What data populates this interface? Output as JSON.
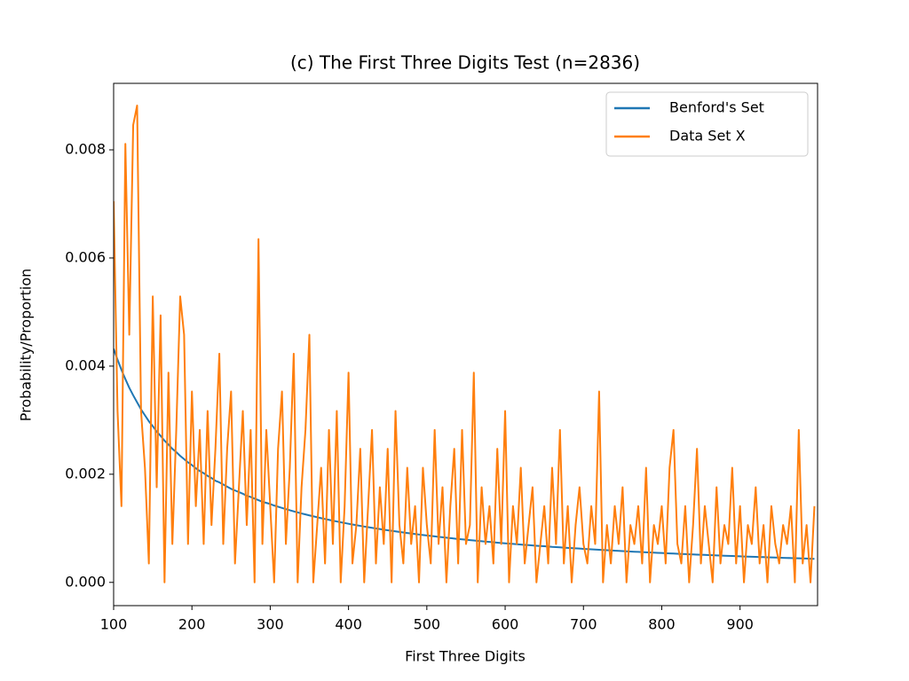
{
  "chart_data": {
    "type": "line",
    "title": "(c) The First Three Digits Test (n=2836)",
    "x_label": "First Three Digits",
    "y_label": "Probability/Proportion",
    "xlim": [
      100,
      999
    ],
    "ylim": [
      -0.00043,
      0.00923
    ],
    "xticks": [
      100,
      200,
      300,
      400,
      500,
      600,
      700,
      800,
      900
    ],
    "yticks": [
      {
        "value": 0,
        "label": "0.000"
      },
      {
        "value": 0.002,
        "label": "0.002"
      },
      {
        "value": 0.004,
        "label": "0.004"
      },
      {
        "value": 0.006,
        "label": "0.006"
      },
      {
        "value": 0.008,
        "label": "0.008"
      }
    ],
    "legend": "upper right",
    "grid": false,
    "x": [
      100,
      105,
      110,
      115,
      120,
      125,
      130,
      135,
      140,
      145,
      150,
      155,
      160,
      165,
      170,
      175,
      180,
      185,
      190,
      195,
      200,
      205,
      210,
      215,
      220,
      225,
      230,
      235,
      240,
      245,
      250,
      255,
      260,
      265,
      270,
      275,
      280,
      285,
      290,
      295,
      300,
      305,
      310,
      315,
      320,
      325,
      330,
      335,
      340,
      345,
      350,
      355,
      360,
      365,
      370,
      375,
      380,
      385,
      390,
      395,
      400,
      405,
      410,
      415,
      420,
      425,
      430,
      435,
      440,
      445,
      450,
      455,
      460,
      465,
      470,
      475,
      480,
      485,
      490,
      495,
      500,
      505,
      510,
      515,
      520,
      525,
      530,
      535,
      540,
      545,
      550,
      555,
      560,
      565,
      570,
      575,
      580,
      585,
      590,
      595,
      600,
      605,
      610,
      615,
      620,
      625,
      630,
      635,
      640,
      645,
      650,
      655,
      660,
      665,
      670,
      675,
      680,
      685,
      690,
      695,
      700,
      705,
      710,
      715,
      720,
      725,
      730,
      735,
      740,
      745,
      750,
      755,
      760,
      765,
      770,
      775,
      780,
      785,
      790,
      795,
      800,
      805,
      810,
      815,
      820,
      825,
      830,
      835,
      840,
      845,
      850,
      855,
      860,
      865,
      870,
      875,
      880,
      885,
      890,
      895,
      900,
      905,
      910,
      915,
      920,
      925,
      930,
      935,
      940,
      945,
      950,
      955,
      960,
      965,
      970,
      975,
      980,
      985,
      990,
      995
    ],
    "series": [
      {
        "name": "Benford's Set",
        "color": "#1f77b4",
        "values": [
          0.00432,
          0.00412,
          0.00393,
          0.00376,
          0.0036,
          0.00346,
          0.00333,
          0.0032,
          0.00309,
          0.00298,
          0.00289,
          0.00279,
          0.00271,
          0.00262,
          0.00255,
          0.00247,
          0.00241,
          0.00234,
          0.00228,
          0.00222,
          0.00217,
          0.00211,
          0.00206,
          0.00202,
          0.00197,
          0.00193,
          0.00188,
          0.00185,
          0.00181,
          0.00177,
          0.00173,
          0.0017,
          0.00167,
          0.00164,
          0.0016,
          0.00158,
          0.00155,
          0.00152,
          0.00149,
          0.00147,
          0.00145,
          0.001421,
          0.001399,
          0.001377,
          0.001355,
          0.001334,
          0.001314,
          0.001294,
          0.001275,
          0.001257,
          0.001239,
          0.001222,
          0.001205,
          0.001188,
          0.001172,
          0.001157,
          0.001141,
          0.001127,
          0.001112,
          0.001098,
          0.001084,
          0.001071,
          0.001058,
          0.001045,
          0.001033,
          0.001021,
          0.001009,
          0.000997,
          0.000986,
          0.000975,
          0.000964,
          0.000953,
          0.000943,
          0.000933,
          0.000923,
          0.000913,
          0.000904,
          0.000895,
          0.000885,
          0.000876,
          0.000867,
          0.000859,
          0.000851,
          0.000842,
          0.000834,
          0.000826,
          0.000819,
          0.000811,
          0.000803,
          0.000796,
          0.000789,
          0.000782,
          0.000775,
          0.000768,
          0.000761,
          0.000754,
          0.000748,
          0.000742,
          0.000735,
          0.000729,
          0.000723,
          0.000717,
          0.000711,
          0.000706,
          0.0007,
          0.000694,
          0.000689,
          0.000683,
          0.000678,
          0.000673,
          0.000668,
          0.000663,
          0.000657,
          0.000653,
          0.000648,
          0.000643,
          0.000638,
          0.000634,
          0.000629,
          0.000625,
          0.00062,
          0.000616,
          0.000611,
          0.000607,
          0.000603,
          0.000599,
          0.000595,
          0.000591,
          0.000586,
          0.000583,
          0.000579,
          0.000575,
          0.000571,
          0.000567,
          0.000564,
          0.00056,
          0.000556,
          0.000553,
          0.000549,
          0.000546,
          0.000543,
          0.000539,
          0.000536,
          0.000533,
          0.000529,
          0.000526,
          0.000523,
          0.00052,
          0.000517,
          0.000514,
          0.000511,
          0.000508,
          0.000505,
          0.000502,
          0.000499,
          0.000496,
          0.000493,
          0.00049,
          0.000488,
          0.000485,
          0.000482,
          0.000479,
          0.000477,
          0.000474,
          0.000472,
          0.000469,
          0.000467,
          0.000464,
          0.000462,
          0.000459,
          0.000457,
          0.000454,
          0.000452,
          0.00045,
          0.000447,
          0.000445,
          0.000443,
          0.000441,
          0.000438,
          0.000436
        ]
      },
      {
        "name": "Data Set X",
        "color": "#ff7f0e",
        "values": [
          0.00705,
          0.00317,
          0.00141,
          0.00811,
          0.00458,
          0.00846,
          0.00882,
          0.00317,
          0.00212,
          0.00035,
          0.00529,
          0.00176,
          0.00494,
          0,
          0.00388,
          0.00071,
          0.00282,
          0.00529,
          0.00458,
          0.00071,
          0.00353,
          0.00141,
          0.00282,
          0.00071,
          0.00317,
          0.00106,
          0.00247,
          0.00423,
          0.00071,
          0.00247,
          0.00353,
          0.00035,
          0.00176,
          0.00317,
          0.00106,
          0.00282,
          0,
          0.00635,
          0.00071,
          0.00282,
          0.00141,
          0,
          0.00247,
          0.00353,
          0.00071,
          0.00212,
          0.00423,
          0,
          0.00176,
          0.00282,
          0.00458,
          0,
          0.00106,
          0.00212,
          0.00035,
          0.00282,
          0.00071,
          0.00317,
          0,
          0.00141,
          0.00388,
          0.00035,
          0.00106,
          0.00247,
          0,
          0.00141,
          0.00282,
          0.00035,
          0.00176,
          0.00071,
          0.00247,
          0,
          0.00317,
          0.00106,
          0.00035,
          0.00212,
          0.00071,
          0.00141,
          0,
          0.00212,
          0.00106,
          0.00035,
          0.00282,
          0.00071,
          0.00176,
          0,
          0.00141,
          0.00247,
          0.00035,
          0.00282,
          0.00071,
          0.00106,
          0.00388,
          0,
          0.00176,
          0.00071,
          0.00141,
          0.00035,
          0.00247,
          0.00071,
          0.00317,
          0,
          0.00141,
          0.00071,
          0.00212,
          0.00035,
          0.00106,
          0.00176,
          0,
          0.00071,
          0.00141,
          0.00035,
          0.00212,
          0.00071,
          0.00282,
          0.00035,
          0.00141,
          0,
          0.00106,
          0.00176,
          0.00071,
          0.00035,
          0.00141,
          0.00071,
          0.00353,
          0,
          0.00106,
          0.00035,
          0.00141,
          0.00071,
          0.00176,
          0,
          0.00106,
          0.00071,
          0.00141,
          0.00035,
          0.00212,
          0,
          0.00106,
          0.00071,
          0.00141,
          0.00035,
          0.00212,
          0.00282,
          0.00071,
          0.00035,
          0.00141,
          0,
          0.00106,
          0.00247,
          0.00035,
          0.00141,
          0.00071,
          0,
          0.00176,
          0.00035,
          0.00106,
          0.00071,
          0.00212,
          0.00035,
          0.00141,
          0,
          0.00106,
          0.00071,
          0.00176,
          0.00035,
          0.00106,
          0,
          0.00141,
          0.00071,
          0.00035,
          0.00106,
          0.00071,
          0.00141,
          0,
          0.00282,
          0.00035,
          0.00106,
          0,
          0.00141
        ]
      }
    ]
  }
}
